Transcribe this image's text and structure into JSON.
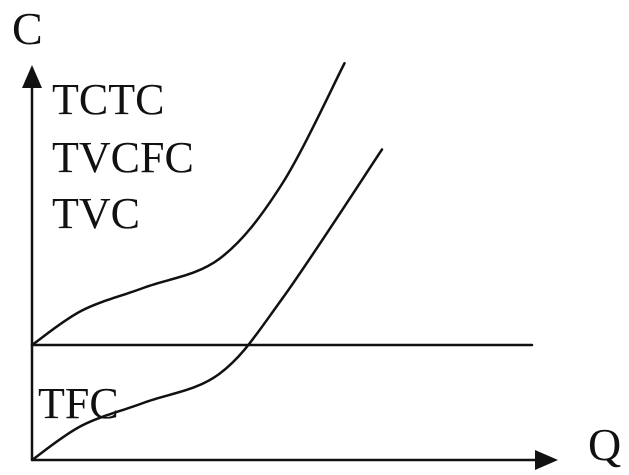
{
  "chart_data": {
    "type": "line",
    "title": "",
    "ylabel": "C",
    "xlabel": "Q",
    "axis_arrows": true,
    "grid": false,
    "ticks": false,
    "labels": {
      "stack": [
        "TCTC",
        "TVCFC",
        "TVC"
      ],
      "tfc": "TFC"
    },
    "series": [
      {
        "name": "TC",
        "shape": "cubic cost curve starting at the fixed-cost level",
        "points": [
          [
            0,
            100
          ],
          [
            20,
            130
          ],
          [
            45,
            150
          ],
          [
            75,
            175
          ],
          [
            100,
            240
          ],
          [
            125,
            345
          ]
        ]
      },
      {
        "name": "TVC",
        "shape": "cubic cost curve starting at the origin",
        "points": [
          [
            0,
            0
          ],
          [
            20,
            30
          ],
          [
            45,
            50
          ],
          [
            75,
            75
          ],
          [
            100,
            140
          ],
          [
            140,
            270
          ]
        ]
      },
      {
        "name": "TFC",
        "shape": "horizontal line at the fixed-cost level",
        "points": [
          [
            0,
            100
          ],
          [
            200,
            100
          ]
        ]
      }
    ],
    "colors": {
      "line": "#111111",
      "background": "#ffffff"
    }
  }
}
